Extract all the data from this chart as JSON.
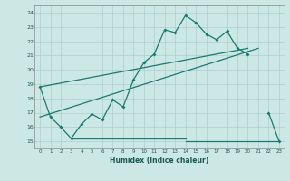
{
  "xlabel": "Humidex (Indice chaleur)",
  "bg_color": "#cce8e5",
  "line_color": "#1a7a6e",
  "grid_color": "#aecece",
  "xlim": [
    -0.5,
    23.5
  ],
  "ylim": [
    14.5,
    24.5
  ],
  "xticks": [
    0,
    1,
    2,
    3,
    4,
    5,
    6,
    7,
    8,
    9,
    10,
    11,
    12,
    13,
    14,
    15,
    16,
    17,
    18,
    19,
    20,
    21,
    22,
    23
  ],
  "yticks": [
    15,
    16,
    17,
    18,
    19,
    20,
    21,
    22,
    23,
    24
  ],
  "curve_x": [
    0,
    1,
    2,
    3,
    4,
    5,
    6,
    7,
    8,
    9,
    10,
    11,
    12,
    13,
    14,
    15,
    16,
    17,
    18,
    19,
    20,
    21,
    22,
    23
  ],
  "curve_y": [
    18.8,
    16.7,
    16.0,
    15.2,
    16.2,
    16.9,
    16.5,
    17.9,
    17.4,
    19.3,
    20.5,
    21.1,
    22.8,
    22.6,
    23.8,
    23.3,
    22.5,
    22.1,
    22.7,
    21.5,
    21.1,
    null,
    17.0,
    15.0
  ],
  "hline_x": [
    3,
    14
  ],
  "hline_y": [
    15.2,
    15.2
  ],
  "hline2_x": [
    14,
    23
  ],
  "hline2_y": [
    15.0,
    15.0
  ],
  "trend1_x": [
    0,
    21
  ],
  "trend1_y": [
    16.7,
    21.5
  ],
  "trend2_x": [
    0,
    20
  ],
  "trend2_y": [
    18.8,
    21.5
  ]
}
